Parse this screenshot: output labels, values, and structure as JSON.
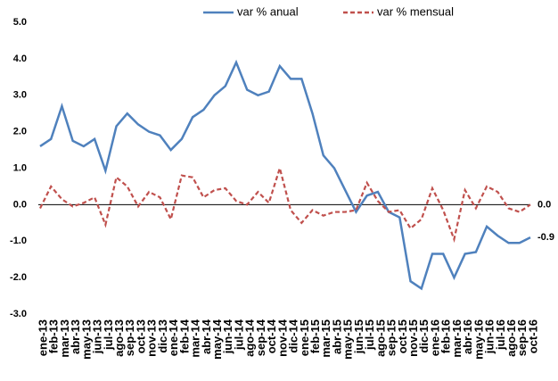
{
  "chart_data": {
    "type": "line",
    "categories": [
      "ene-13",
      "feb-13",
      "mar-13",
      "abr-13",
      "may-13",
      "jun-13",
      "jul-13",
      "ago-13",
      "sep-13",
      "oct-13",
      "nov-13",
      "dic-13",
      "ene-14",
      "feb-14",
      "mar-14",
      "abr-14",
      "may-14",
      "jun-14",
      "jul-14",
      "ago-14",
      "sep-14",
      "oct-14",
      "nov-14",
      "dic-14",
      "ene-15",
      "feb-15",
      "mar-15",
      "abr-15",
      "may-15",
      "jun-15",
      "jul-15",
      "ago-15",
      "sep-15",
      "oct-15",
      "nov-15",
      "dic-15",
      "ene-16",
      "feb-16",
      "mar-16",
      "abr-16",
      "may-16",
      "jun-16",
      "jul-16",
      "ago-16",
      "sep-16",
      "oct-16"
    ],
    "series": [
      {
        "name": "var % anual",
        "color": "#4f81bd",
        "dashed": false,
        "values": [
          1.6,
          1.8,
          2.7,
          1.75,
          1.6,
          1.8,
          0.93,
          2.15,
          2.5,
          2.2,
          2.0,
          1.9,
          1.5,
          1.8,
          2.4,
          2.6,
          3.0,
          3.25,
          3.9,
          3.15,
          3.0,
          3.1,
          3.8,
          3.45,
          3.45,
          2.5,
          1.35,
          1.0,
          0.4,
          -0.2,
          0.25,
          0.35,
          -0.2,
          -0.35,
          -2.1,
          -2.3,
          -1.35,
          -1.35,
          -2.0,
          -1.35,
          -1.3,
          -0.6,
          -0.85,
          -1.05,
          -1.05,
          -0.9
        ],
        "value_labels": [
          null,
          null,
          null,
          null,
          null,
          null,
          null,
          null,
          null,
          null,
          null,
          null,
          null,
          null,
          null,
          null,
          null,
          null,
          null,
          null,
          null,
          null,
          null,
          null,
          null,
          null,
          null,
          null,
          null,
          null,
          null,
          null,
          null,
          null,
          null,
          null,
          null,
          null,
          null,
          null,
          null,
          null,
          null,
          null,
          null,
          "-0.9"
        ]
      },
      {
        "name": "var % mensual",
        "color": "#c0504d",
        "dashed": true,
        "values": [
          -0.1,
          0.5,
          0.15,
          -0.05,
          0.05,
          0.2,
          -0.55,
          0.75,
          0.5,
          -0.05,
          0.35,
          0.2,
          -0.4,
          0.8,
          0.75,
          0.2,
          0.4,
          0.45,
          0.1,
          0.0,
          0.35,
          0.05,
          1.0,
          -0.15,
          -0.5,
          -0.15,
          -0.3,
          -0.2,
          -0.2,
          -0.15,
          0.6,
          0.1,
          -0.2,
          -0.15,
          -0.65,
          -0.4,
          0.45,
          -0.15,
          -0.95,
          0.4,
          -0.1,
          0.5,
          0.35,
          -0.1,
          -0.2,
          0.0
        ],
        "value_labels": [
          null,
          null,
          null,
          null,
          null,
          null,
          null,
          null,
          null,
          null,
          null,
          null,
          null,
          null,
          null,
          null,
          null,
          null,
          null,
          null,
          null,
          null,
          null,
          null,
          null,
          null,
          null,
          null,
          null,
          null,
          null,
          null,
          null,
          null,
          null,
          null,
          null,
          null,
          null,
          null,
          null,
          null,
          null,
          null,
          null,
          "0.0"
        ]
      }
    ],
    "ylim": [
      -3,
      5
    ],
    "yticks": [
      {
        "value": -3,
        "label": "-3.0"
      },
      {
        "value": -2,
        "label": "-2.0"
      },
      {
        "value": -1,
        "label": "-1.0"
      },
      {
        "value": 0,
        "label": "0.0"
      },
      {
        "value": 1,
        "label": "1.0"
      },
      {
        "value": 2,
        "label": "2.0"
      },
      {
        "value": 3,
        "label": "3.0"
      },
      {
        "value": 4,
        "label": "4.0"
      },
      {
        "value": 5,
        "label": "5.0"
      }
    ],
    "grid": false,
    "legend": "top"
  }
}
